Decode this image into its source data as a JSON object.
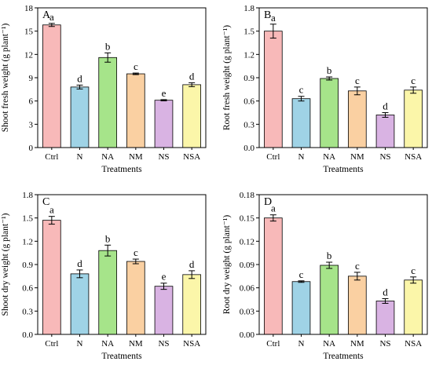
{
  "palette": {
    "bar_colors": [
      "#f8b9b9",
      "#9fd3e6",
      "#a6e48a",
      "#fad0a2",
      "#d9b3e3",
      "#fbf6a9"
    ],
    "stroke": "#000000"
  },
  "chart_data": [
    {
      "type": "bar",
      "panel_label": "A",
      "categories": [
        "Ctrl",
        "N",
        "NA",
        "NM",
        "NS",
        "NSA"
      ],
      "values": [
        15.8,
        7.8,
        11.6,
        9.5,
        6.1,
        8.1
      ],
      "errors": [
        0.2,
        0.25,
        0.6,
        0.1,
        0.08,
        0.25
      ],
      "significance": [
        "a",
        "d",
        "b",
        "c",
        "e",
        "d"
      ],
      "xlabel": "Treatments",
      "ylabel": "Shoot fresh weight (g plant⁻¹)",
      "ylim": [
        0,
        18
      ],
      "yticks": [
        "0",
        "3",
        "6",
        "9",
        "12",
        "15",
        "18"
      ]
    },
    {
      "type": "bar",
      "panel_label": "B",
      "categories": [
        "Ctrl",
        "N",
        "NA",
        "NM",
        "NS",
        "NSA"
      ],
      "values": [
        1.5,
        0.63,
        0.89,
        0.73,
        0.42,
        0.74
      ],
      "errors": [
        0.09,
        0.03,
        0.02,
        0.05,
        0.03,
        0.04
      ],
      "significance": [
        "a",
        "c",
        "b",
        "c",
        "d",
        "c"
      ],
      "xlabel": "Treatments",
      "ylabel": "Root fresh weight (g plant⁻¹)",
      "ylim": [
        0,
        1.8
      ],
      "yticks": [
        "0.0",
        "0.3",
        "0.6",
        "0.9",
        "1.2",
        "1.5",
        "1.8"
      ]
    },
    {
      "type": "bar",
      "panel_label": "C",
      "categories": [
        "Ctrl",
        "N",
        "NA",
        "NM",
        "NS",
        "NSA"
      ],
      "values": [
        1.47,
        0.78,
        1.08,
        0.94,
        0.62,
        0.77
      ],
      "errors": [
        0.05,
        0.05,
        0.07,
        0.03,
        0.04,
        0.05
      ],
      "significance": [
        "a",
        "d",
        "b",
        "c",
        "e",
        "d"
      ],
      "xlabel": "Treatments",
      "ylabel": "Shoot dry weight (g plant⁻¹)",
      "ylim": [
        0,
        1.8
      ],
      "yticks": [
        "0.0",
        "0.3",
        "0.6",
        "0.9",
        "1.2",
        "1.5",
        "1.8"
      ]
    },
    {
      "type": "bar",
      "panel_label": "D",
      "categories": [
        "Ctrl",
        "N",
        "NA",
        "NM",
        "NS",
        "NSA"
      ],
      "values": [
        0.15,
        0.068,
        0.089,
        0.075,
        0.043,
        0.07
      ],
      "errors": [
        0.004,
        0.001,
        0.004,
        0.005,
        0.003,
        0.004
      ],
      "significance": [
        "a",
        "c",
        "b",
        "c",
        "d",
        "c"
      ],
      "xlabel": "Treatments",
      "ylabel": "Root dry weight (g plant⁻¹)",
      "ylim": [
        0,
        0.18
      ],
      "yticks": [
        "0.00",
        "0.03",
        "0.06",
        "0.09",
        "0.12",
        "0.15",
        "0.18"
      ]
    }
  ]
}
